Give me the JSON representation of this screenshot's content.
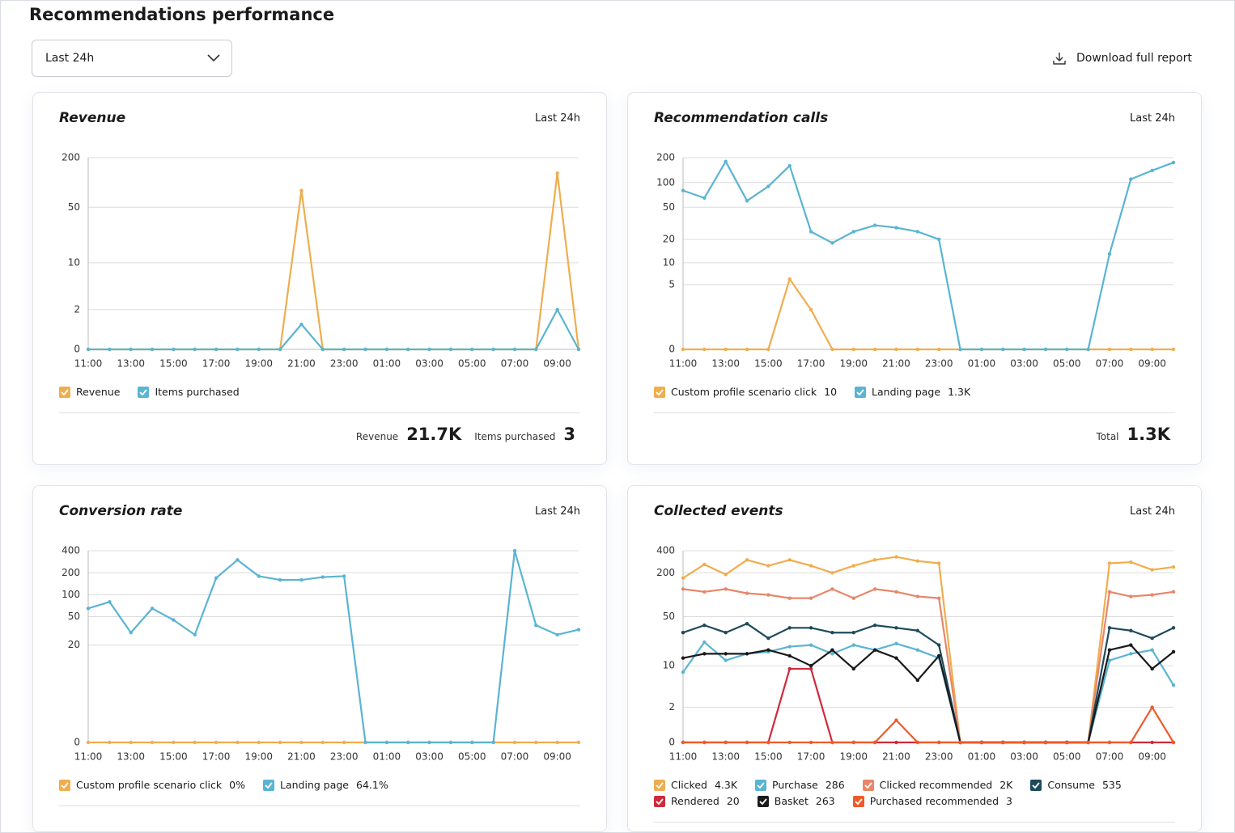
{
  "page": {
    "title": "Recommendations performance",
    "period_select": "Last 24h",
    "download": "Download full report"
  },
  "chart_data": [
    {
      "type": "line",
      "title": "Revenue",
      "period": "Last 24h",
      "yscale": "log1p",
      "ylim": [
        0,
        200
      ],
      "yticks": [
        0,
        2,
        10,
        50,
        200
      ],
      "categories": [
        "11:00",
        null,
        "13:00",
        null,
        "15:00",
        null,
        "17:00",
        null,
        "19:00",
        null,
        "21:00",
        null,
        "23:00",
        null,
        "01:00",
        null,
        "03:00",
        null,
        "05:00",
        null,
        "07:00",
        null,
        "09:00",
        null
      ],
      "series": [
        {
          "name": "Revenue",
          "color": "#f0ad4e",
          "values": [
            0,
            0,
            0,
            0,
            0,
            0,
            0,
            0,
            0,
            0,
            80,
            0,
            0,
            0,
            0,
            0,
            0,
            0,
            0,
            0,
            0,
            0,
            130,
            0
          ]
        },
        {
          "name": "Items purchased",
          "color": "#5ab4d2",
          "values": [
            0,
            0,
            0,
            0,
            0,
            0,
            0,
            0,
            0,
            0,
            1,
            0,
            0,
            0,
            0,
            0,
            0,
            0,
            0,
            0,
            0,
            0,
            2,
            0
          ]
        }
      ],
      "totals": [
        {
          "label": "Revenue",
          "value": "21.7K"
        },
        {
          "label": "Items purchased",
          "value": "3"
        }
      ]
    },
    {
      "type": "line",
      "title": "Recommendation calls",
      "period": "Last 24h",
      "yscale": "log1p",
      "ylim": [
        0,
        200
      ],
      "yticks": [
        0,
        5,
        10,
        20,
        50,
        100,
        200
      ],
      "categories": [
        "11:00",
        null,
        "13:00",
        null,
        "15:00",
        null,
        "17:00",
        null,
        "19:00",
        null,
        "21:00",
        null,
        "23:00",
        null,
        "01:00",
        null,
        "03:00",
        null,
        "05:00",
        null,
        "07:00",
        null,
        "09:00",
        null
      ],
      "series": [
        {
          "name": "Custom profile scenario click",
          "legend_value": "10",
          "color": "#f0ad4e",
          "values": [
            0,
            0,
            0,
            0,
            0,
            6,
            2,
            0,
            0,
            0,
            0,
            0,
            0,
            0,
            0,
            0,
            0,
            0,
            0,
            0,
            0,
            0,
            0,
            0
          ]
        },
        {
          "name": "Landing page",
          "legend_value": "1.3K",
          "color": "#5ab4d2",
          "values": [
            80,
            65,
            180,
            60,
            90,
            160,
            25,
            18,
            25,
            30,
            28,
            25,
            20,
            0,
            0,
            0,
            0,
            0,
            0,
            0,
            13,
            110,
            140,
            175
          ]
        }
      ],
      "totals": [
        {
          "label": "Total",
          "value": "1.3K"
        }
      ]
    },
    {
      "type": "line",
      "title": "Conversion rate",
      "period": "Last 24h",
      "yscale": "log1p",
      "ylim": [
        0,
        400
      ],
      "yticks": [
        0,
        20,
        50,
        100,
        200,
        400
      ],
      "categories": [
        "11:00",
        null,
        "13:00",
        null,
        "15:00",
        null,
        "17:00",
        null,
        "19:00",
        null,
        "21:00",
        null,
        "23:00",
        null,
        "01:00",
        null,
        "03:00",
        null,
        "05:00",
        null,
        "07:00",
        null,
        "09:00",
        null
      ],
      "series": [
        {
          "name": "Custom profile scenario click",
          "legend_value": "0%",
          "color": "#f0ad4e",
          "values": [
            0,
            0,
            0,
            0,
            0,
            0,
            0,
            0,
            0,
            0,
            0,
            0,
            0,
            0,
            0,
            0,
            0,
            0,
            0,
            0,
            0,
            0,
            0,
            0
          ]
        },
        {
          "name": "Landing page",
          "legend_value": "64.1%",
          "color": "#5ab4d2",
          "values": [
            65,
            80,
            30,
            65,
            45,
            28,
            170,
            300,
            180,
            160,
            160,
            175,
            180,
            0,
            0,
            0,
            0,
            0,
            0,
            0,
            400,
            38,
            28,
            33
          ]
        }
      ]
    },
    {
      "type": "line",
      "title": "Collected events",
      "period": "Last 24h",
      "yscale": "log1p",
      "ylim": [
        0,
        400
      ],
      "yticks": [
        0,
        2,
        10,
        50,
        200,
        400
      ],
      "categories": [
        "11:00",
        null,
        "13:00",
        null,
        "15:00",
        null,
        "17:00",
        null,
        "19:00",
        null,
        "21:00",
        null,
        "23:00",
        null,
        "01:00",
        null,
        "03:00",
        null,
        "05:00",
        null,
        "07:00",
        null,
        "09:00",
        null
      ],
      "series": [
        {
          "name": "Clicked",
          "legend_value": "4.3K",
          "color": "#f0ad4e",
          "values": [
            170,
            260,
            190,
            300,
            250,
            300,
            250,
            200,
            250,
            300,
            330,
            290,
            270,
            0,
            0,
            0,
            0,
            0,
            0,
            0,
            270,
            280,
            220,
            240
          ]
        },
        {
          "name": "Purchase",
          "legend_value": "286",
          "color": "#5ab4d2",
          "values": [
            8,
            22,
            12,
            15,
            16,
            19,
            20,
            15,
            20,
            17,
            21,
            17,
            13,
            0,
            0,
            0,
            0,
            0,
            0,
            0,
            12,
            15,
            17,
            5
          ]
        },
        {
          "name": "Clicked recommended",
          "legend_value": "2K",
          "color": "#e8866a",
          "values": [
            120,
            110,
            120,
            105,
            100,
            90,
            90,
            120,
            90,
            120,
            110,
            95,
            90,
            0,
            0,
            0,
            0,
            0,
            0,
            0,
            110,
            95,
            100,
            110
          ]
        },
        {
          "name": "Consume",
          "legend_value": "535",
          "color": "#1e4a5c",
          "values": [
            30,
            38,
            30,
            40,
            25,
            35,
            35,
            30,
            30,
            38,
            35,
            32,
            20,
            0,
            0,
            0,
            0,
            0,
            0,
            0,
            35,
            32,
            25,
            35
          ]
        },
        {
          "name": "Rendered",
          "legend_value": "20",
          "color": "#d0293a",
          "values": [
            0,
            0,
            0,
            0,
            0,
            9,
            9,
            0,
            0,
            0,
            0,
            0,
            0,
            0,
            0,
            0,
            0,
            0,
            0,
            0,
            0,
            0,
            0,
            0
          ]
        },
        {
          "name": "Basket",
          "legend_value": "263",
          "color": "#1a1a1a",
          "values": [
            13,
            15,
            15,
            15,
            17,
            14,
            10,
            17,
            9,
            17,
            13,
            6,
            14,
            0,
            0,
            0,
            0,
            0,
            0,
            0,
            17,
            20,
            9,
            16
          ]
        },
        {
          "name": "Purchased recommended",
          "legend_value": "3",
          "color": "#ef5a2a",
          "values": [
            0,
            0,
            0,
            0,
            0,
            0,
            0,
            0,
            0,
            0,
            1,
            0,
            0,
            0,
            0,
            0,
            0,
            0,
            0,
            0,
            0,
            0,
            2,
            0
          ]
        }
      ]
    }
  ]
}
